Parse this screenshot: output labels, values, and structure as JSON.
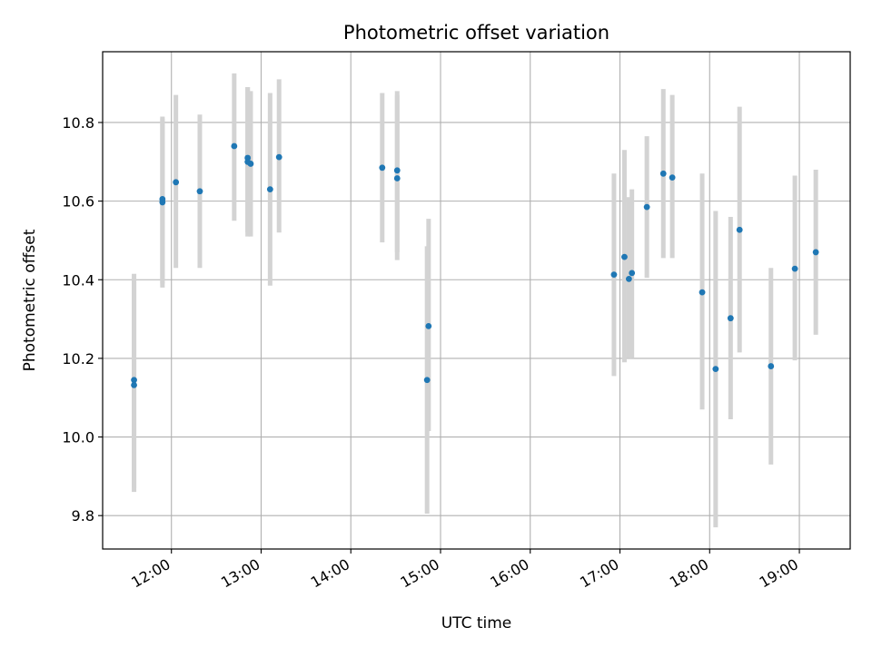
{
  "chart_data": {
    "type": "scatter",
    "title": "Photometric offset variation",
    "xlabel": "UTC time",
    "ylabel": "Photometric offset",
    "x_ticks": [
      "12:00",
      "13:00",
      "14:00",
      "15:00",
      "16:00",
      "17:00",
      "18:00",
      "19:00"
    ],
    "y_ticks": [
      "9.8",
      "10.0",
      "10.2",
      "10.4",
      "10.6",
      "10.8"
    ],
    "xlim": [
      "11:14",
      "19:34"
    ],
    "ylim": [
      9.715,
      10.98
    ],
    "grid": true,
    "colors": {
      "points": "#1f77b4",
      "errorbars": "#d3d3d3",
      "grid": "#b0b0b0"
    },
    "points": [
      {
        "x": "11:35",
        "y": 10.145,
        "yerr_low": 9.87,
        "yerr_high": 10.415
      },
      {
        "x": "11:35",
        "y": 10.132,
        "yerr_low": 9.86,
        "yerr_high": 10.4
      },
      {
        "x": "11:54",
        "y": 10.605,
        "yerr_low": 10.39,
        "yerr_high": 10.815
      },
      {
        "x": "11:54",
        "y": 10.597,
        "yerr_low": 10.38,
        "yerr_high": 10.81
      },
      {
        "x": "12:03",
        "y": 10.648,
        "yerr_low": 10.43,
        "yerr_high": 10.87
      },
      {
        "x": "12:19",
        "y": 10.625,
        "yerr_low": 10.43,
        "yerr_high": 10.82
      },
      {
        "x": "12:42",
        "y": 10.74,
        "yerr_low": 10.55,
        "yerr_high": 10.925
      },
      {
        "x": "12:51",
        "y": 10.71,
        "yerr_low": 10.52,
        "yerr_high": 10.89
      },
      {
        "x": "12:51",
        "y": 10.7,
        "yerr_low": 10.51,
        "yerr_high": 10.89
      },
      {
        "x": "12:53",
        "y": 10.695,
        "yerr_low": 10.51,
        "yerr_high": 10.88
      },
      {
        "x": "13:06",
        "y": 10.63,
        "yerr_low": 10.385,
        "yerr_high": 10.875
      },
      {
        "x": "13:12",
        "y": 10.712,
        "yerr_low": 10.52,
        "yerr_high": 10.91
      },
      {
        "x": "14:21",
        "y": 10.685,
        "yerr_low": 10.495,
        "yerr_high": 10.875
      },
      {
        "x": "14:31",
        "y": 10.678,
        "yerr_low": 10.47,
        "yerr_high": 10.88
      },
      {
        "x": "14:31",
        "y": 10.658,
        "yerr_low": 10.45,
        "yerr_high": 10.87
      },
      {
        "x": "14:51",
        "y": 10.145,
        "yerr_low": 9.805,
        "yerr_high": 10.485
      },
      {
        "x": "14:52",
        "y": 10.282,
        "yerr_low": 10.015,
        "yerr_high": 10.555
      },
      {
        "x": "16:56",
        "y": 10.413,
        "yerr_low": 10.155,
        "yerr_high": 10.67
      },
      {
        "x": "17:03",
        "y": 10.458,
        "yerr_low": 10.19,
        "yerr_high": 10.73
      },
      {
        "x": "17:06",
        "y": 10.402,
        "yerr_low": 10.2,
        "yerr_high": 10.61
      },
      {
        "x": "17:08",
        "y": 10.417,
        "yerr_low": 10.2,
        "yerr_high": 10.63
      },
      {
        "x": "17:18",
        "y": 10.585,
        "yerr_low": 10.405,
        "yerr_high": 10.765
      },
      {
        "x": "17:29",
        "y": 10.67,
        "yerr_low": 10.455,
        "yerr_high": 10.885
      },
      {
        "x": "17:35",
        "y": 10.66,
        "yerr_low": 10.455,
        "yerr_high": 10.87
      },
      {
        "x": "17:55",
        "y": 10.368,
        "yerr_low": 10.07,
        "yerr_high": 10.67
      },
      {
        "x": "18:04",
        "y": 10.173,
        "yerr_low": 9.77,
        "yerr_high": 10.575
      },
      {
        "x": "18:14",
        "y": 10.302,
        "yerr_low": 10.045,
        "yerr_high": 10.56
      },
      {
        "x": "18:20",
        "y": 10.527,
        "yerr_low": 10.215,
        "yerr_high": 10.84
      },
      {
        "x": "18:41",
        "y": 10.18,
        "yerr_low": 9.93,
        "yerr_high": 10.43
      },
      {
        "x": "18:57",
        "y": 10.428,
        "yerr_low": 10.195,
        "yerr_high": 10.665
      },
      {
        "x": "19:11",
        "y": 10.47,
        "yerr_low": 10.26,
        "yerr_high": 10.68
      }
    ]
  }
}
